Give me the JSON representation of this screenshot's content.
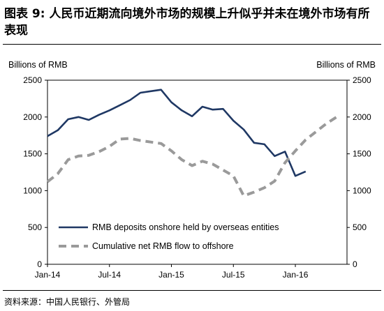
{
  "title": "图表 9:    人民币近期流向境外市场的规模上升似乎并未在境外市场有所表现",
  "source": "资料来源：中国人民银行、外管局",
  "chart_data": {
    "type": "line",
    "ylabel_left": "Billions of RMB",
    "ylabel_right": "Billions of RMB",
    "ylim": [
      0,
      2500
    ],
    "y_ticks": [
      0,
      500,
      1000,
      1500,
      2000,
      2500
    ],
    "grid": false,
    "legend_position": "bottom-left",
    "x_tick_labels": [
      "Jan-14",
      "Jul-14",
      "Jan-15",
      "Jul-15",
      "Jan-16"
    ],
    "x_tick_months": [
      0,
      6,
      12,
      18,
      24
    ],
    "x_range_months": [
      0,
      29
    ],
    "series": [
      {
        "name": "RMB deposits onshore held by overseas entities",
        "color": "#1f3864",
        "style": "solid",
        "x": [
          0,
          1,
          2,
          3,
          4,
          5,
          6,
          7,
          8,
          9,
          10,
          11,
          12,
          13,
          14,
          15,
          16,
          17,
          18,
          19,
          20,
          21,
          22,
          23,
          24,
          25
        ],
        "values": [
          1740,
          1820,
          1970,
          2000,
          1960,
          2030,
          2090,
          2160,
          2230,
          2330,
          2350,
          2370,
          2200,
          2090,
          2010,
          2140,
          2100,
          2110,
          1950,
          1830,
          1650,
          1630,
          1470,
          1530,
          1200,
          1260
        ]
      },
      {
        "name": "Cumulative net RMB flow to offshore",
        "color": "#9a9a9a",
        "style": "dashed",
        "x": [
          0,
          1,
          2,
          3,
          4,
          5,
          6,
          7,
          8,
          9,
          10,
          11,
          12,
          13,
          14,
          15,
          16,
          17,
          18,
          19,
          20,
          21,
          22,
          23,
          24,
          25,
          26,
          27,
          28
        ],
        "values": [
          1120,
          1230,
          1420,
          1470,
          1480,
          1530,
          1600,
          1700,
          1710,
          1680,
          1660,
          1640,
          1540,
          1420,
          1340,
          1400,
          1360,
          1280,
          1200,
          930,
          980,
          1040,
          1130,
          1380,
          1540,
          1690,
          1800,
          1910,
          2000
        ]
      }
    ]
  }
}
